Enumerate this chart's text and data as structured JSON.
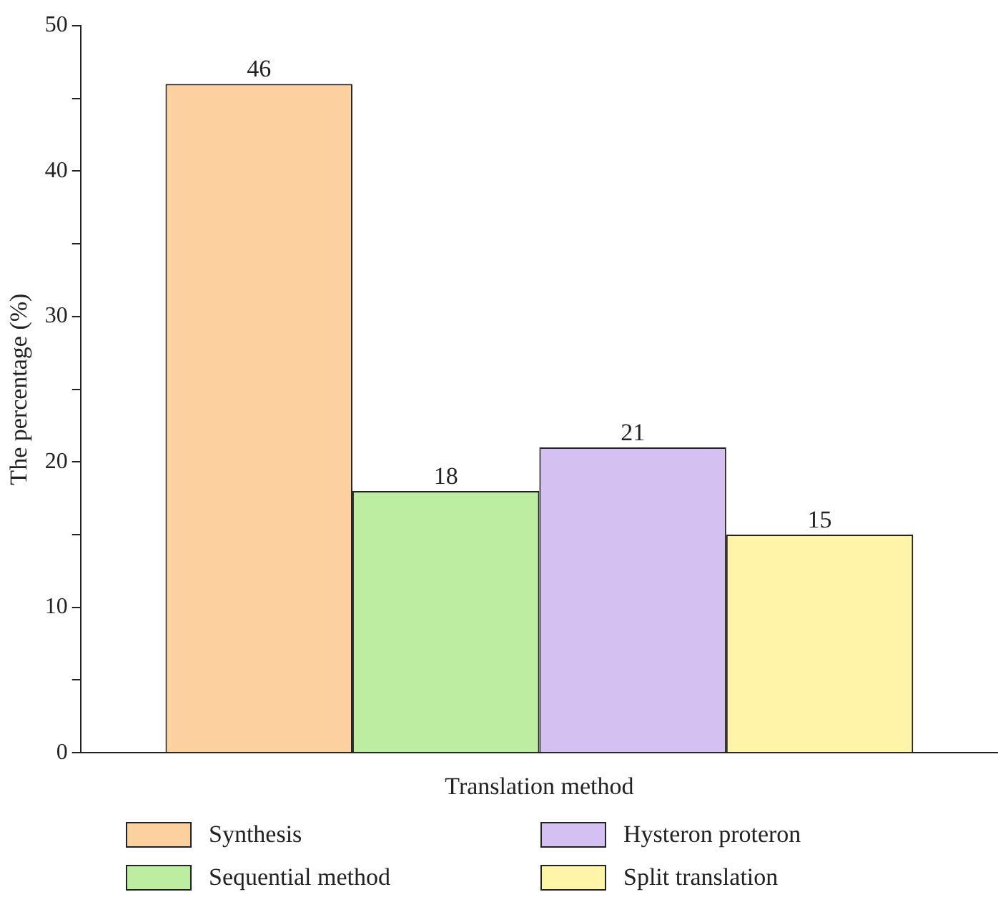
{
  "chart_data": {
    "type": "bar",
    "xlabel": "Translation method",
    "ylabel": "The percentage (%)",
    "categories": [
      null
    ],
    "series": [
      {
        "name": "Synthesis",
        "color": "#fdd09f",
        "values": [
          46
        ]
      },
      {
        "name": "Sequential method",
        "color": "#bdeda0",
        "values": [
          18
        ]
      },
      {
        "name": "Hysteron proteron",
        "color": "#d5c0f2",
        "values": [
          21
        ]
      },
      {
        "name": "Split translation",
        "color": "#fff4a8",
        "values": [
          15
        ]
      }
    ],
    "ylim": [
      0,
      50
    ],
    "yticks": [
      0,
      {
        "value": 5,
        "label": null
      },
      10,
      {
        "value": 15,
        "label": null
      },
      20,
      {
        "value": 25,
        "label": null
      },
      30,
      {
        "value": 35,
        "label": null
      },
      40,
      {
        "value": 45,
        "label": null
      },
      50
    ],
    "tick_labels": "y",
    "data_labels": true,
    "legend": "bottom",
    "grid": false
  }
}
